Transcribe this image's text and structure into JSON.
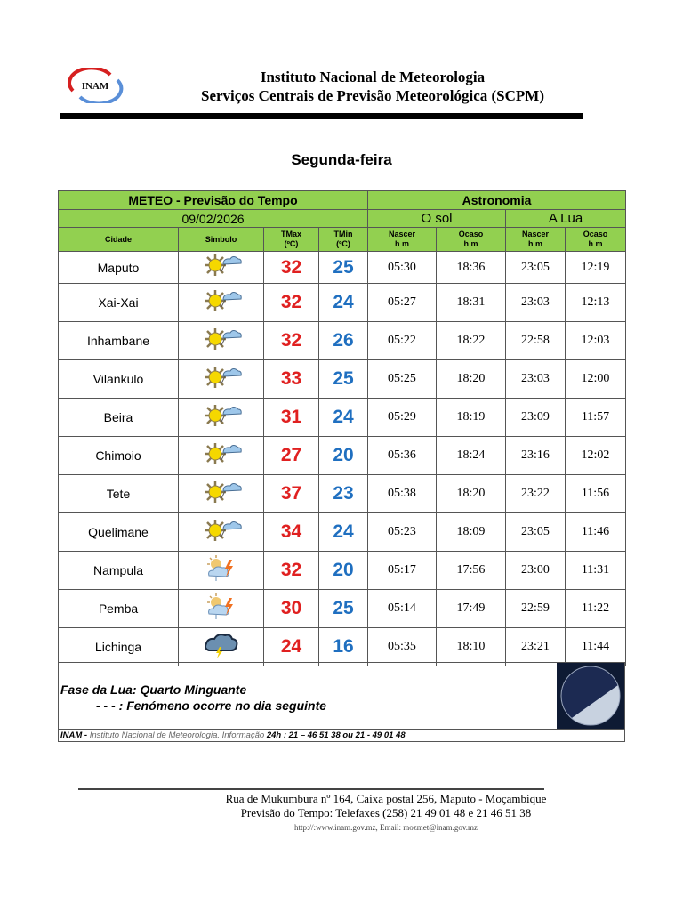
{
  "header": {
    "logo_text": "INAM",
    "line1": "Instituto Nacional de Meteorologia",
    "line2": "Serviços Centrais de Previsão Meteorológica (SCPM)"
  },
  "day": "Segunda-feira",
  "table": {
    "title": "METEO - Previsão do Tempo",
    "date": "09/02/2026",
    "astronomy": "Astronomia",
    "sun": "O sol",
    "moon": "A Lua",
    "columns": {
      "city": "Cidade",
      "symbol": "Simbolo",
      "tmax": [
        "TMax",
        "(ºC)"
      ],
      "tmin": [
        "TMin",
        "(ºC)"
      ],
      "rise": [
        "Nascer",
        "h m"
      ],
      "set": [
        "Ocaso",
        "h m"
      ]
    },
    "rows": [
      {
        "city": "Maputo",
        "icon": "sun-cloud-icon",
        "tmax": "32",
        "tmin": "25",
        "sun_rise": "05:30",
        "sun_set": "18:36",
        "moon_rise": "23:05",
        "moon_set": "12:19"
      },
      {
        "city": "Xai-Xai",
        "icon": "sun-cloud-icon",
        "tmax": "32",
        "tmin": "24",
        "sun_rise": "05:27",
        "sun_set": "18:31",
        "moon_rise": "23:03",
        "moon_set": "12:13"
      },
      {
        "city": "Inhambane",
        "icon": "sun-cloud-icon",
        "tmax": "32",
        "tmin": "26",
        "sun_rise": "05:22",
        "sun_set": "18:22",
        "moon_rise": "22:58",
        "moon_set": "12:03"
      },
      {
        "city": "Vilankulo",
        "icon": "sun-cloud-icon",
        "tmax": "33",
        "tmin": "25",
        "sun_rise": "05:25",
        "sun_set": "18:20",
        "moon_rise": "23:03",
        "moon_set": "12:00"
      },
      {
        "city": "Beira",
        "icon": "sun-cloud-icon",
        "tmax": "31",
        "tmin": "24",
        "sun_rise": "05:29",
        "sun_set": "18:19",
        "moon_rise": "23:09",
        "moon_set": "11:57"
      },
      {
        "city": "Chimoio",
        "icon": "sun-cloud-icon",
        "tmax": "27",
        "tmin": "20",
        "sun_rise": "05:36",
        "sun_set": "18:24",
        "moon_rise": "23:16",
        "moon_set": "12:02"
      },
      {
        "city": "Tete",
        "icon": "sun-cloud-icon",
        "tmax": "37",
        "tmin": "23",
        "sun_rise": "05:38",
        "sun_set": "18:20",
        "moon_rise": "23:22",
        "moon_set": "11:56"
      },
      {
        "city": "Quelimane",
        "icon": "sun-cloud-icon",
        "tmax": "34",
        "tmin": "24",
        "sun_rise": "05:23",
        "sun_set": "18:09",
        "moon_rise": "23:05",
        "moon_set": "11:46"
      },
      {
        "city": "Nampula",
        "icon": "sun-cloud-thunder-icon",
        "tmax": "32",
        "tmin": "20",
        "sun_rise": "05:17",
        "sun_set": "17:56",
        "moon_rise": "23:00",
        "moon_set": "11:31"
      },
      {
        "city": "Pemba",
        "icon": "sun-cloud-thunder-icon",
        "tmax": "30",
        "tmin": "25",
        "sun_rise": "05:14",
        "sun_set": "17:49",
        "moon_rise": "22:59",
        "moon_set": "11:22"
      },
      {
        "city": "Lichinga",
        "icon": "thunderstorm-icon",
        "tmax": "24",
        "tmin": "16",
        "sun_rise": "05:35",
        "sun_set": "18:10",
        "moon_rise": "23:21",
        "moon_set": "11:44"
      }
    ]
  },
  "footer": {
    "moon_phase": "Fase da Lua: Quarto Minguante",
    "note": "- - - : Fenómeno ocorre no dia seguinte",
    "info_org": "INAM - ",
    "info_name": "Instituto Nacional de Meteorologia. Informação ",
    "info_phone": "24h : 21 – 46 51 38 ou 21 - 49 01 48"
  },
  "address": {
    "line1": "Rua de Mukumbura nº 164, Caixa postal  256, Maputo -  Moçambique",
    "line2": "Previsão do Tempo: Telefaxes (258) 21 49 01 48 e  21 46 51 38",
    "line3": "http://:www.inam.gov.mz, Email: mozmet@inam.gov.mz"
  },
  "colors": {
    "header_green": "#92d050",
    "tmax": "#e02020",
    "tmin": "#1f6fc0"
  }
}
